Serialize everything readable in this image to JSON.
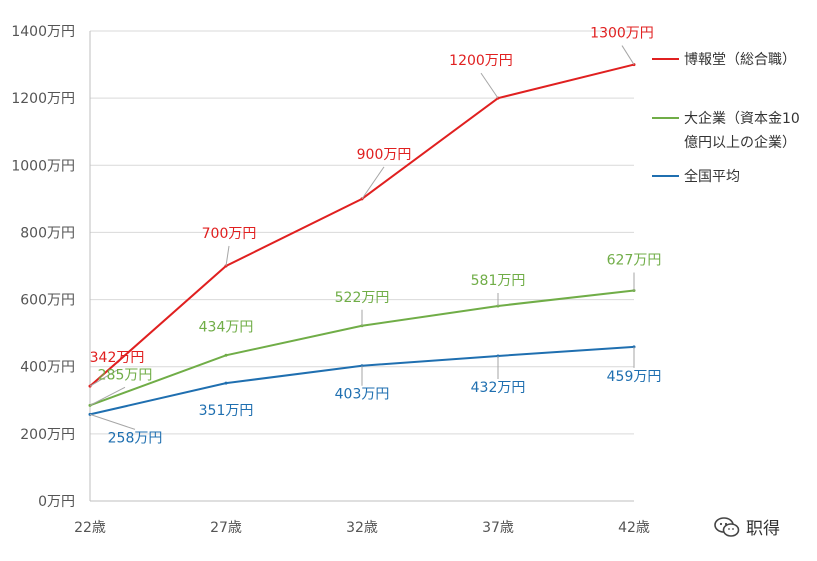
{
  "chart_data": {
    "type": "line",
    "categories": [
      "22歳",
      "27歳",
      "32歳",
      "37歳",
      "42歳"
    ],
    "ylim": [
      0,
      1400
    ],
    "y_ticks": [
      0,
      200,
      400,
      600,
      800,
      1000,
      1200,
      1400
    ],
    "y_tick_suffix": "万円",
    "grid": true,
    "legend_position": "right",
    "series": [
      {
        "name": "博報堂（総合職）",
        "color": "#e02020",
        "values": [
          342,
          700,
          900,
          1200,
          1300
        ],
        "labels": [
          "342万円",
          "700万円",
          "900万円",
          "1200万円",
          "1300万円"
        ]
      },
      {
        "name": "大企業（資本金10億円以上の企業）",
        "legend_lines": [
          "大企業（資本金10",
          "億円以上の企業）"
        ],
        "color": "#70ad47",
        "values": [
          285,
          434,
          522,
          581,
          627
        ],
        "labels": [
          "285万円",
          "434万円",
          "522万円",
          "581万円",
          "627万円"
        ]
      },
      {
        "name": "全国平均",
        "color": "#1f6fb0",
        "values": [
          258,
          351,
          403,
          432,
          459
        ],
        "labels": [
          "258万円",
          "351万円",
          "403万円",
          "432万円",
          "459万円"
        ]
      }
    ]
  },
  "watermark": {
    "text": "职得",
    "icon": "wechat-icon"
  }
}
